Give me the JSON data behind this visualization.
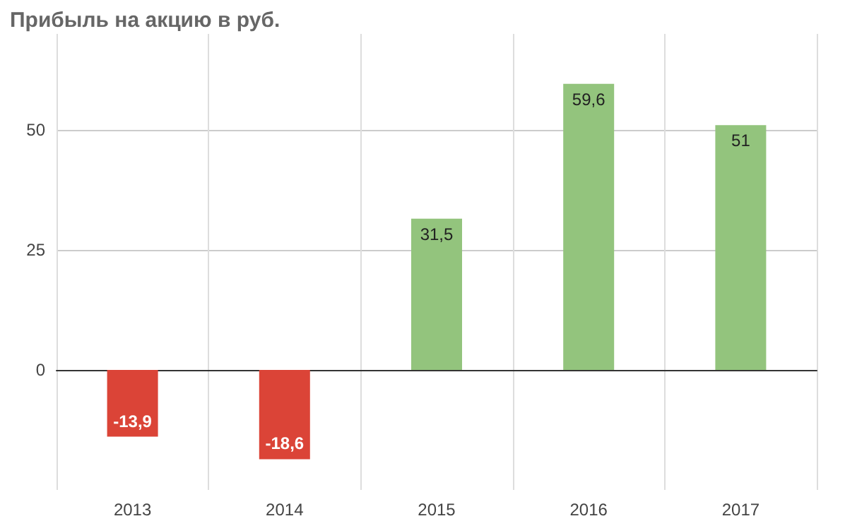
{
  "chart_data": {
    "type": "bar",
    "title": "Прибыль на акцию в руб.",
    "categories": [
      "2013",
      "2014",
      "2015",
      "2016",
      "2017"
    ],
    "values": [
      -13.9,
      -18.6,
      31.5,
      59.6,
      51
    ],
    "value_labels": [
      "-13,9",
      "-18,6",
      "31,5",
      "59,6",
      "51"
    ],
    "colors": [
      "#db4437",
      "#db4437",
      "#93c47d",
      "#93c47d",
      "#93c47d"
    ],
    "ylim": [
      -25,
      70
    ],
    "yticks": [
      0,
      25,
      50
    ],
    "grid": true
  }
}
